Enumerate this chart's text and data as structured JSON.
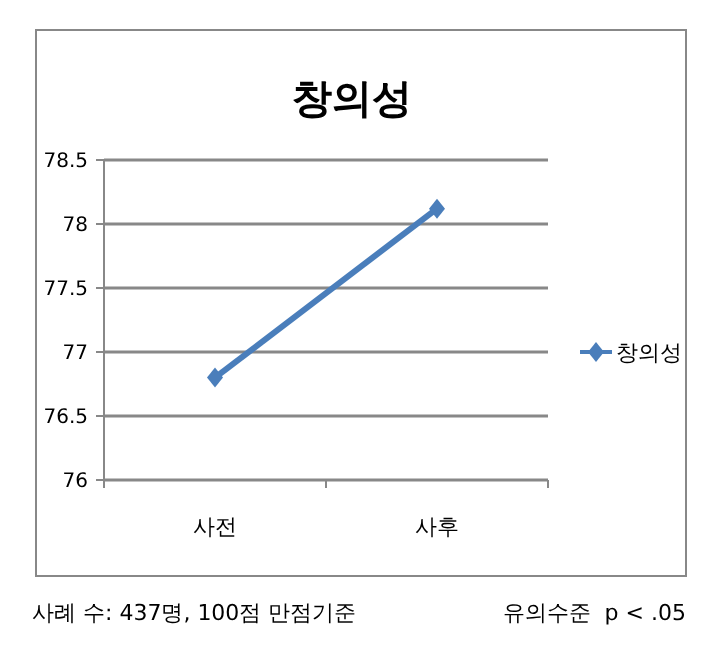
{
  "chart_data": {
    "type": "line",
    "title": "창의성",
    "categories": [
      "사전",
      "사후"
    ],
    "series": [
      {
        "name": "창의성",
        "color": "#4a7ebb",
        "values": [
          76.8,
          78.12
        ]
      }
    ],
    "ylim": [
      76,
      78.5
    ],
    "yticks": [
      76,
      76.5,
      77,
      77.5,
      78,
      78.5
    ],
    "grid": "y",
    "legend": "right",
    "marker": "diamond",
    "line_style": "solid",
    "annotations": [
      "사례 수: 437명, 100점 만점기준",
      "유의수준  p < .05"
    ]
  }
}
